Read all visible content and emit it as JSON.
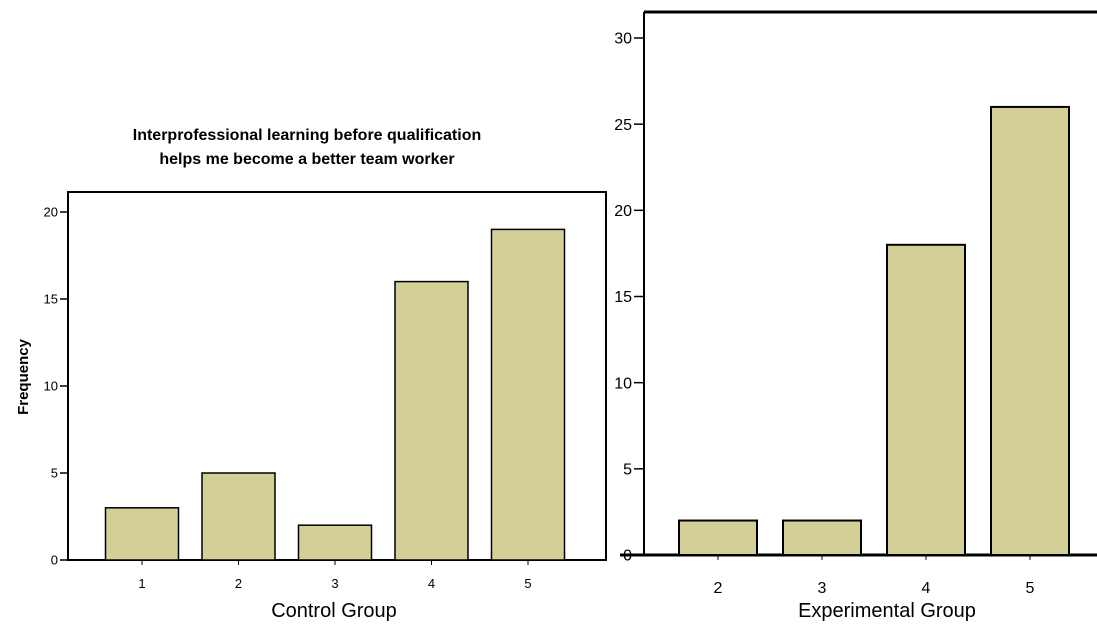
{
  "chart_data": [
    {
      "type": "bar",
      "title_lines": [
        "Interprofessional learning before qualification",
        "helps me become a better team worker"
      ],
      "ylabel": "Frequency",
      "xlabel": "Control Group",
      "categories": [
        "1",
        "2",
        "3",
        "4",
        "5"
      ],
      "values": [
        3,
        5,
        2,
        16,
        19
      ],
      "yticks": [
        "0",
        "5",
        "10",
        "15",
        "20"
      ],
      "ylim": [
        0,
        20
      ],
      "bar_color": "#d3cf97",
      "grid": false
    },
    {
      "type": "bar",
      "xlabel": "Experimental Group",
      "categories": [
        "2",
        "3",
        "4",
        "5"
      ],
      "values": [
        2,
        2,
        18,
        26
      ],
      "yticks": [
        "0",
        "5",
        "10",
        "15",
        "20",
        "25",
        "30"
      ],
      "ylim": [
        0,
        30
      ],
      "bar_color": "#d3cf97",
      "grid": false
    }
  ]
}
